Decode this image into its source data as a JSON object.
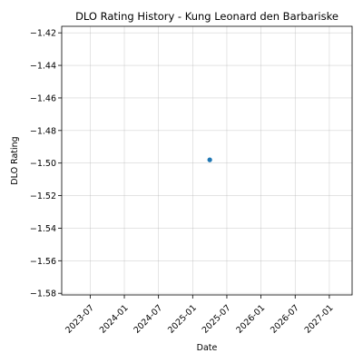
{
  "chart_data": {
    "type": "scatter",
    "title": "DLO Rating History - Kung Leonard den Barbariske",
    "xlabel": "Date",
    "ylabel": "DLO Rating",
    "x_ticks": [
      "2023-07",
      "2024-01",
      "2024-07",
      "2025-01",
      "2025-07",
      "2026-01",
      "2026-07",
      "2027-01"
    ],
    "y_ticks": [
      "−1.42",
      "−1.44",
      "−1.46",
      "−1.48",
      "−1.50",
      "−1.52",
      "−1.54",
      "−1.56",
      "−1.58"
    ],
    "xlim": [
      "2023-02",
      "2027-05"
    ],
    "ylim": [
      -1.581,
      -1.416
    ],
    "grid": true,
    "series": [
      {
        "x": [
          "2025-04"
        ],
        "y": [
          -1.498
        ],
        "color": "#1f77b4"
      }
    ]
  }
}
